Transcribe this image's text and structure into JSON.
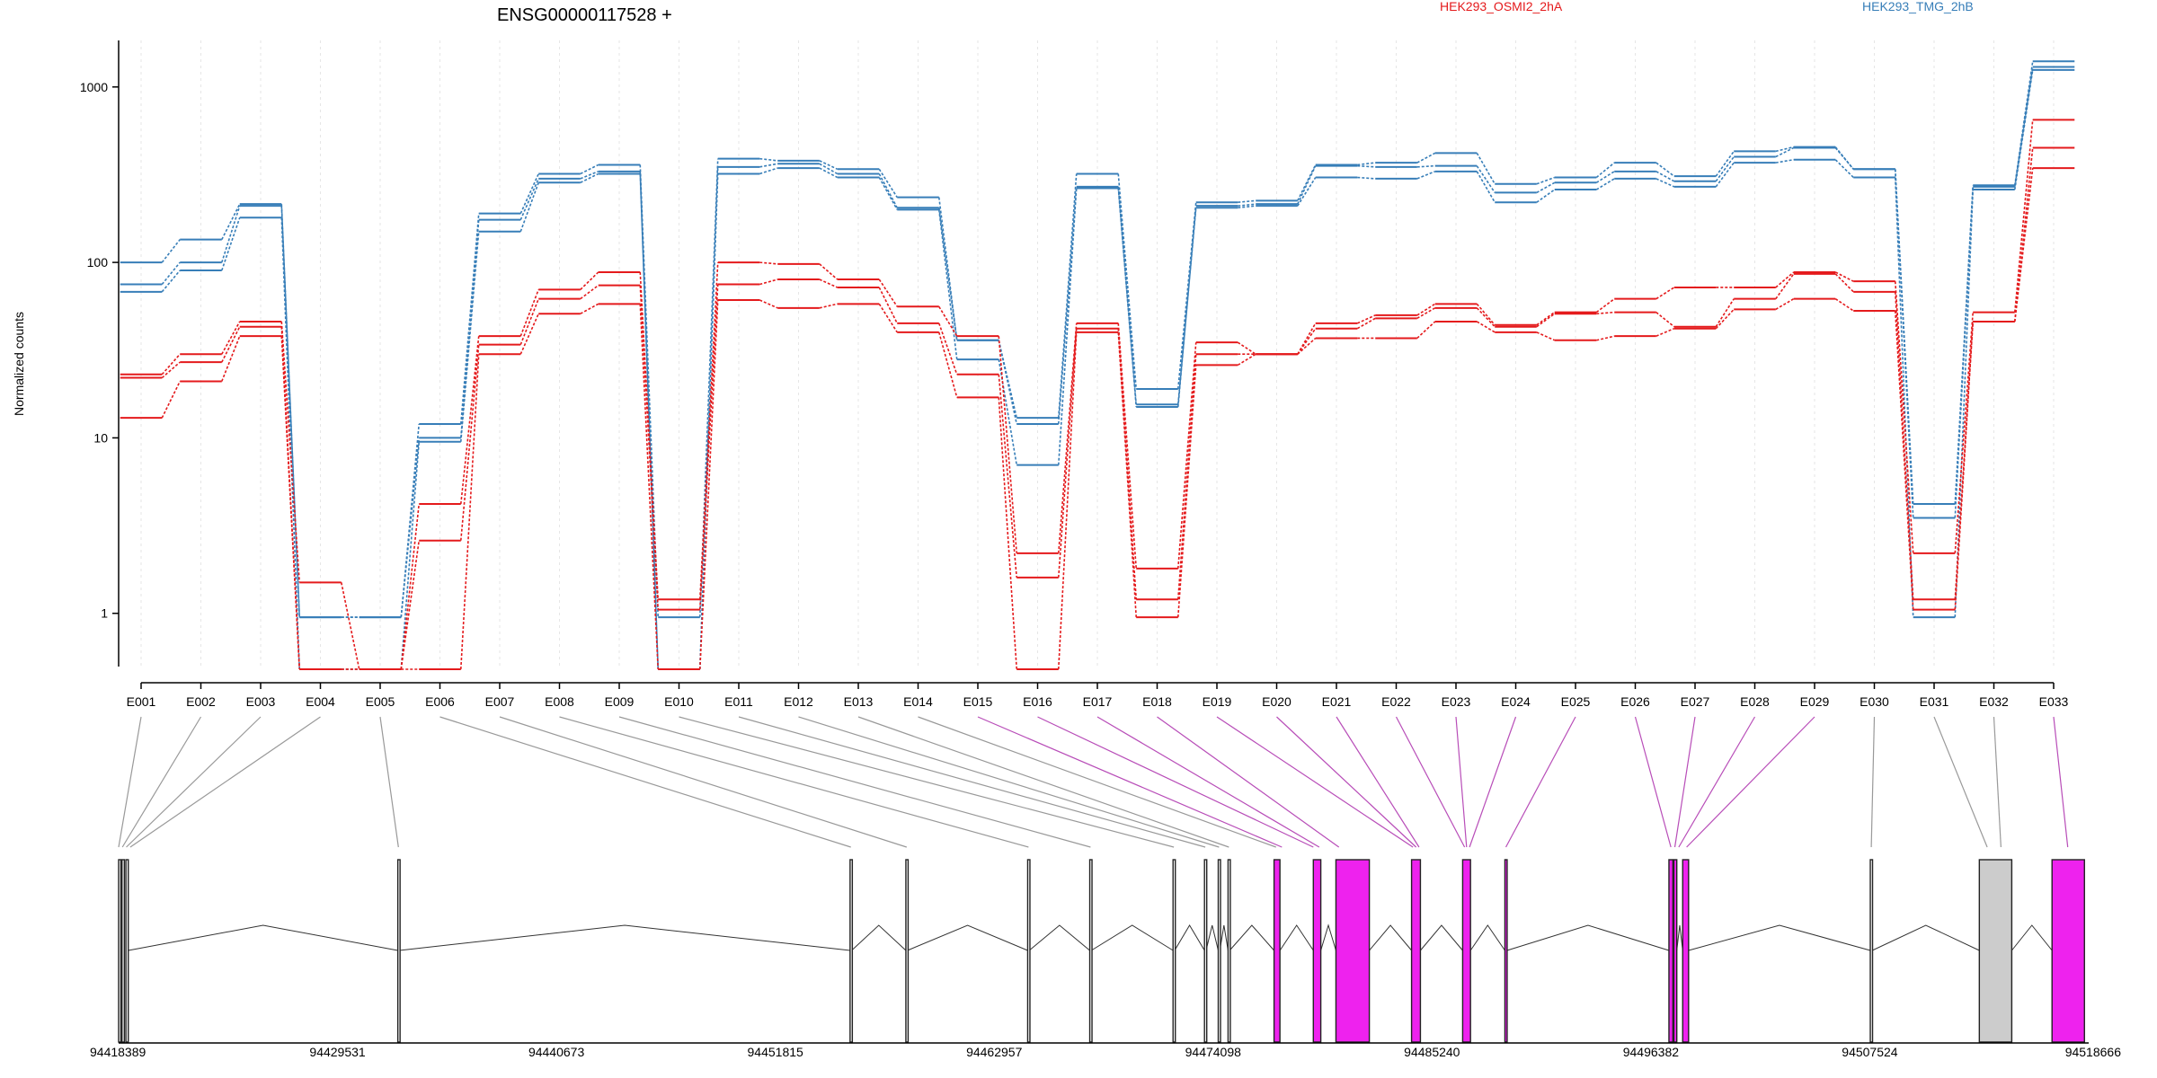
{
  "chart_data": {
    "type": "line",
    "title": "ENSG00000117528 +",
    "ylabel": "Normalized counts",
    "y_scale": "log",
    "ylim": [
      0.48,
      2000
    ],
    "y_ticks": [
      1,
      10,
      100,
      1000
    ],
    "y_tick_labels": [
      "1",
      "10",
      "100",
      "1000"
    ],
    "categories": [
      "E001",
      "E002",
      "E003",
      "E004",
      "E005",
      "E006",
      "E007",
      "E008",
      "E009",
      "E010",
      "E011",
      "E012",
      "E013",
      "E014",
      "E015",
      "E016",
      "E017",
      "E018",
      "E019",
      "E020",
      "E021",
      "E022",
      "E023",
      "E024",
      "E025",
      "E026",
      "E027",
      "E028",
      "E029",
      "E030",
      "E031",
      "E032",
      "E033"
    ],
    "legend": [
      {
        "label": "HEK293_OSMI2_2hA",
        "color": "#e41a1c"
      },
      {
        "label": "HEK293_TMG_2hB",
        "color": "#377eb8"
      }
    ],
    "series": [
      {
        "group": 1,
        "color": "#377eb8",
        "values": [
          100,
          135,
          215,
          0.95,
          0.95,
          12,
          190,
          320,
          360,
          0.95,
          390,
          380,
          340,
          235,
          36,
          13,
          320,
          19,
          220,
          225,
          360,
          370,
          420,
          280,
          305,
          370,
          310,
          430,
          455,
          340,
          4.2,
          275,
          1400
        ]
      },
      {
        "group": 1,
        "color": "#377eb8",
        "values": [
          75,
          100,
          210,
          0.95,
          0.95,
          10,
          175,
          300,
          330,
          0.48,
          350,
          365,
          320,
          205,
          36,
          12,
          270,
          15,
          210,
          215,
          355,
          350,
          355,
          250,
          285,
          330,
          290,
          400,
          450,
          340,
          3.5,
          270,
          1300
        ]
      },
      {
        "group": 1,
        "color": "#377eb8",
        "values": [
          68,
          90,
          180,
          0.48,
          0.48,
          9.5,
          150,
          285,
          320,
          0.48,
          320,
          345,
          305,
          200,
          28,
          7,
          265,
          15.5,
          205,
          210,
          305,
          300,
          330,
          220,
          260,
          300,
          270,
          370,
          385,
          305,
          0.95,
          260,
          1250
        ]
      },
      {
        "group": 0,
        "color": "#e41a1c",
        "values": [
          23,
          30,
          46,
          1.5,
          0.48,
          4.2,
          38,
          70,
          88,
          1.2,
          100,
          98,
          80,
          56,
          38,
          2.2,
          45,
          1.8,
          35,
          30,
          45,
          50,
          58,
          44,
          52,
          62,
          72,
          72,
          88,
          78,
          2.2,
          52,
          650
        ]
      },
      {
        "group": 0,
        "color": "#e41a1c",
        "values": [
          22,
          27,
          43,
          0.48,
          0.48,
          2.6,
          34,
          62,
          74,
          1.05,
          75,
          80,
          72,
          45,
          23,
          1.6,
          42,
          1.2,
          30,
          30,
          42,
          48,
          55,
          43,
          51,
          52,
          43,
          62,
          86,
          68,
          1.2,
          46,
          450
        ]
      },
      {
        "group": 0,
        "color": "#e41a1c",
        "values": [
          13,
          21,
          38,
          0.48,
          0.48,
          0.48,
          30,
          51,
          58,
          0.48,
          61,
          55,
          58,
          40,
          17,
          0.48,
          40,
          0.95,
          26,
          30,
          37,
          37,
          46,
          40,
          36,
          38,
          42,
          54,
          62,
          53,
          1.05,
          46,
          345
        ]
      }
    ],
    "gene_model": {
      "coordinate_labels": [
        "94418389",
        "94429531",
        "94440673",
        "94451815",
        "94462957",
        "94474098",
        "94485240",
        "94496382",
        "94507524",
        "94518666"
      ],
      "coord_start": 94418389,
      "coord_end": 94518666,
      "exon_positions": [
        94418389,
        94418580,
        94418780,
        94418980,
        94432630,
        94455660,
        94458500,
        94464700,
        94467860,
        94472100,
        94473700,
        94474400,
        94474900,
        94477300,
        94477600,
        94479200,
        94479500,
        94480500,
        94484270,
        94484430,
        94484580,
        94486900,
        94487000,
        94487150,
        94489000,
        94497400,
        94497600,
        94497800,
        94498200,
        94507600,
        94513500,
        94514200,
        94517600
      ],
      "highlight_color": "#ee22ee",
      "neutral_color": "#cccccc",
      "exons": [
        {
          "start": 94418389,
          "end": 94418480,
          "state": "plain"
        },
        {
          "start": 94418560,
          "end": 94418680,
          "state": "plain"
        },
        {
          "start": 94418760,
          "end": 94418880,
          "state": "plain"
        },
        {
          "start": 94432600,
          "end": 94432680,
          "state": "plain"
        },
        {
          "start": 94455620,
          "end": 94455700,
          "state": "plain"
        },
        {
          "start": 94458460,
          "end": 94458540,
          "state": "plain"
        },
        {
          "start": 94464660,
          "end": 94464740,
          "state": "plain"
        },
        {
          "start": 94467820,
          "end": 94467900,
          "state": "plain"
        },
        {
          "start": 94472060,
          "end": 94472140,
          "state": "plain"
        },
        {
          "start": 94473660,
          "end": 94473740,
          "state": "plain"
        },
        {
          "start": 94474360,
          "end": 94474440,
          "state": "plain"
        },
        {
          "start": 94474860,
          "end": 94474940,
          "state": "plain"
        },
        {
          "start": 94477200,
          "end": 94477500,
          "state": "highlight"
        },
        {
          "start": 94479200,
          "end": 94479580,
          "state": "highlight"
        },
        {
          "start": 94480350,
          "end": 94482050,
          "state": "highlight"
        },
        {
          "start": 94484200,
          "end": 94484650,
          "state": "highlight"
        },
        {
          "start": 94486800,
          "end": 94487200,
          "state": "highlight"
        },
        {
          "start": 94488950,
          "end": 94489060,
          "state": "highlight"
        },
        {
          "start": 94497300,
          "end": 94497500,
          "state": "highlight"
        },
        {
          "start": 94497550,
          "end": 94497700,
          "state": "highlight"
        },
        {
          "start": 94498000,
          "end": 94498300,
          "state": "highlight"
        },
        {
          "start": 94507550,
          "end": 94507650,
          "state": "plain"
        },
        {
          "start": 94513100,
          "end": 94514750,
          "state": "neutral"
        },
        {
          "start": 94516800,
          "end": 94518450,
          "state": "highlight"
        }
      ],
      "exon_link_state": [
        "plain",
        "plain",
        "plain",
        "plain",
        "plain",
        "plain",
        "plain",
        "plain",
        "plain",
        "plain",
        "plain",
        "plain",
        "plain",
        "plain",
        "highlight",
        "highlight",
        "highlight",
        "highlight",
        "highlight",
        "highlight",
        "highlight",
        "highlight",
        "highlight",
        "highlight",
        "highlight",
        "highlight",
        "highlight",
        "highlight",
        "highlight",
        "plain",
        "plain",
        "plain",
        "highlight"
      ]
    }
  }
}
